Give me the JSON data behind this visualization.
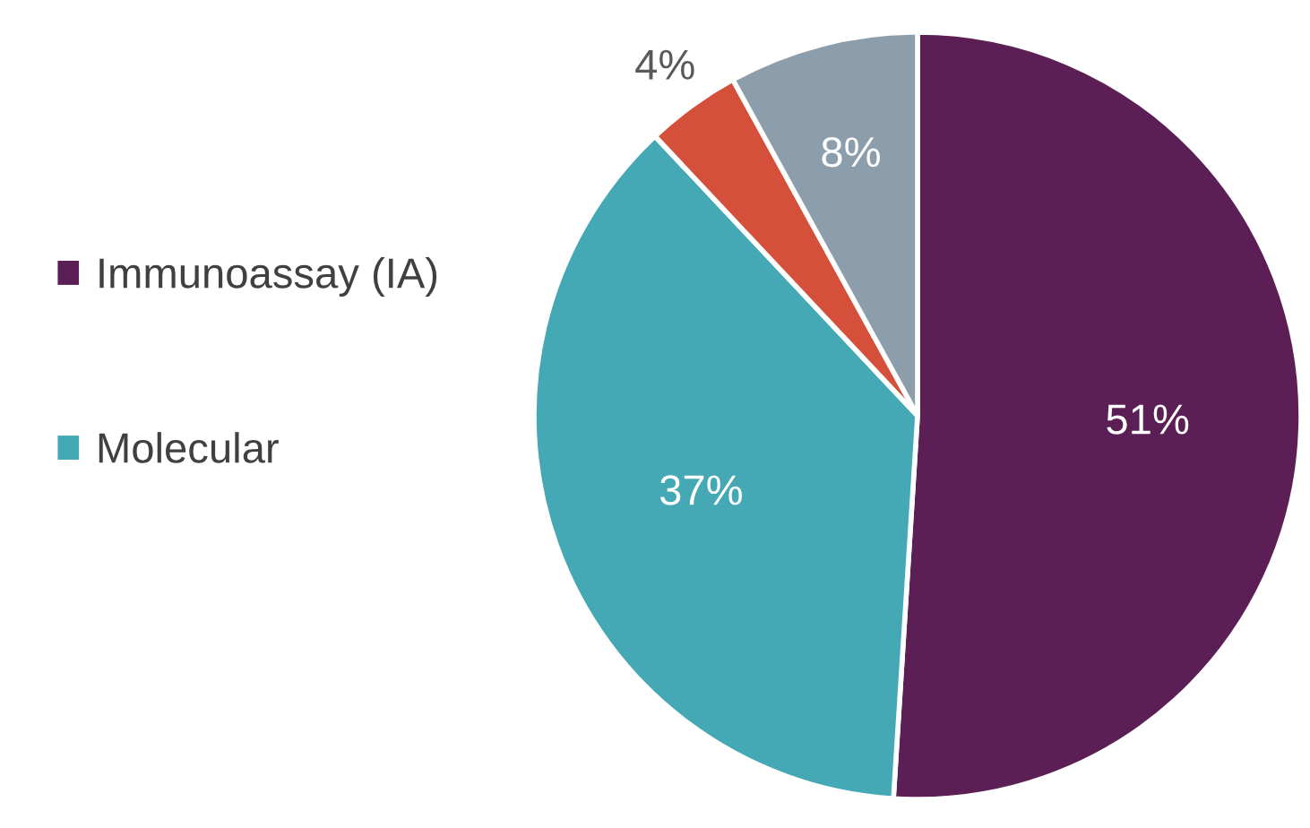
{
  "chart_data": {
    "type": "pie",
    "categories": [
      "Immunoassay (IA)",
      "Molecular",
      null,
      null
    ],
    "values": [
      51,
      37,
      4,
      8
    ],
    "colors": [
      "#5b1f56",
      "#44a9b5",
      "#d4503a",
      "#8c9dab"
    ],
    "value_labels": [
      "51%",
      "37%",
      "4%",
      "8%"
    ],
    "legend": "left"
  }
}
